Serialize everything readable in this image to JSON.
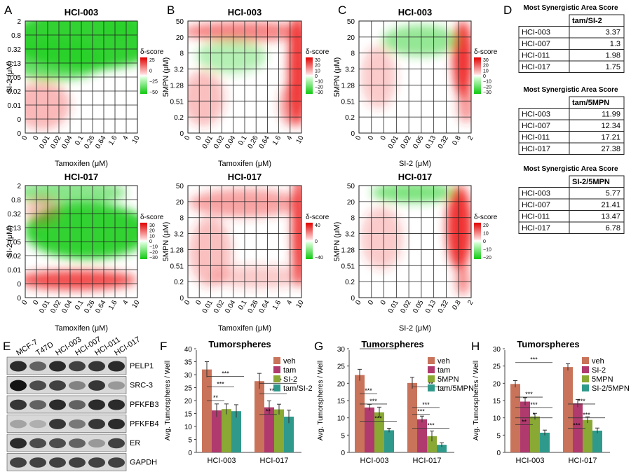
{
  "figure": {
    "panel_letters": [
      "A",
      "B",
      "C",
      "D",
      "E",
      "F",
      "G",
      "H"
    ],
    "delta_legend_title": "δ-score",
    "heatmap_axis": {
      "x_tam_label": "Tamoxifen (μM)",
      "x_si2_label": "SI-2 (μM)",
      "y_si2_label": "SI-2 (μM)",
      "y_5mpn_label": "5MPN (μM)",
      "tam_ticks": [
        "0",
        "0",
        "0.01",
        "0.02",
        "0.04",
        "0.1",
        "0.26",
        "0.64",
        "1.6",
        "4",
        "10"
      ],
      "si2_x_ticks": [
        "0",
        "0",
        "0",
        "0.01",
        "0.02",
        "0.05",
        "0.13",
        "0.32",
        "0.8",
        "2"
      ],
      "si2_y_ticks": [
        "0",
        "0",
        "0.01",
        "0.02",
        "0.05",
        "0.13",
        "0.32",
        "0.8",
        "2"
      ],
      "mpn_y_ticks": [
        "0",
        "0.2",
        "0.51",
        "1.28",
        "3.2",
        "8",
        "20",
        "50"
      ]
    },
    "heatmaps": [
      {
        "title": "HCI-003",
        "legend_ticks": [
          "25",
          "0",
          "−25",
          "−50"
        ]
      },
      {
        "title": "HCI-003",
        "legend_ticks": [
          "30",
          "20",
          "10",
          "0",
          "−10",
          "−20",
          "−30"
        ]
      },
      {
        "title": "HCI-003",
        "legend_ticks": [
          "30",
          "20",
          "10",
          "0",
          "−10",
          "−20",
          "−30"
        ]
      },
      {
        "title": "HCI-017",
        "legend_ticks": [
          "30",
          "20",
          "10",
          "0",
          "−10",
          "−20",
          "−30"
        ]
      },
      {
        "title": "HCI-017",
        "legend_ticks": [
          "40",
          "0",
          "−40"
        ]
      },
      {
        "title": "HCI-017",
        "legend_ticks": [
          "20",
          "10",
          "0",
          "−10",
          "−20"
        ]
      }
    ],
    "score_tables": [
      {
        "heading": "Most Synergistic Area Score",
        "col": "tam/SI-2",
        "rows": [
          [
            "HCI-003",
            "3.37"
          ],
          [
            "HCI-007",
            "1.3"
          ],
          [
            "HCI-011",
            "1.98"
          ],
          [
            "HCI-017",
            "1.75"
          ]
        ]
      },
      {
        "heading": "Most Synergistic Area Score",
        "col": "tam/5MPN",
        "rows": [
          [
            "HCI-003",
            "11.99"
          ],
          [
            "HCI-007",
            "12.34"
          ],
          [
            "HCI-011",
            "17.21"
          ],
          [
            "HCI-017",
            "27.38"
          ]
        ]
      },
      {
        "heading": "Most Synergistic Area Score",
        "col": "SI-2/5MPN",
        "rows": [
          [
            "HCI-003",
            "5.77"
          ],
          [
            "HCI-007",
            "21.41"
          ],
          [
            "HCI-011",
            "13.47"
          ],
          [
            "HCI-017",
            "6.78"
          ]
        ]
      }
    ],
    "blot": {
      "cell_lines": [
        "MCF-7",
        "T47D",
        "HCI-003",
        "HCI-007",
        "HCI-011",
        "HCI-017"
      ],
      "proteins": [
        "PELP1",
        "SRC-3",
        "PFKFB3",
        "PFKFB4",
        "ER",
        "GAPDH"
      ]
    },
    "chart_data": [
      {
        "type": "bar",
        "title": "Tumorspheres",
        "ylabel": "Avg. Tumorspheres / Well",
        "ylim": [
          0,
          40
        ],
        "yticks": [
          "0",
          "5",
          "10",
          "15",
          "20",
          "25",
          "30",
          "35",
          "40"
        ],
        "categories": [
          "HCI-003",
          "HCI-017"
        ],
        "series": [
          {
            "name": "veh",
            "color": "#c8735a",
            "values": [
              32,
              27.5
            ]
          },
          {
            "name": "tam",
            "color": "#b03a6e",
            "values": [
              16.2,
              17.4
            ]
          },
          {
            "name": "SI-2",
            "color": "#8aa834",
            "values": [
              16.7,
              16.6
            ]
          },
          {
            "name": "tam/SI-2",
            "color": "#2f9a8c",
            "values": [
              15.9,
              13.8
            ]
          }
        ],
        "annotations": [
          "***",
          "***",
          "**",
          "***",
          "**",
          "***"
        ]
      },
      {
        "type": "bar",
        "title": "Tumorspheres",
        "ylabel": "Avg. Tumorspheres / Well",
        "ylim": [
          0,
          30
        ],
        "yticks": [
          "0",
          "5",
          "10",
          "15",
          "20",
          "25",
          "30"
        ],
        "categories": [
          "HCI-003",
          "HCI-017"
        ],
        "series": [
          {
            "name": "veh",
            "color": "#c8735a",
            "values": [
              22.4,
              20.1
            ]
          },
          {
            "name": "tam",
            "color": "#b03a6e",
            "values": [
              13,
              9.6
            ]
          },
          {
            "name": "5MPN",
            "color": "#8aa834",
            "values": [
              11.6,
              4.7
            ]
          },
          {
            "name": "tam/5MPN",
            "color": "#2f9a8c",
            "values": [
              6.4,
              2.2
            ]
          }
        ],
        "annotations": [
          "***",
          "***",
          "***",
          "***",
          "**",
          "***",
          "***",
          "***",
          "***"
        ]
      },
      {
        "type": "bar",
        "title": "Tumorspheres",
        "ylabel": "Avg. Tumorspheres / Well",
        "ylim": [
          0,
          30
        ],
        "yticks": [
          "0",
          "5",
          "10",
          "15",
          "20",
          "25",
          "30"
        ],
        "categories": [
          "HCI-003",
          "HCI-017"
        ],
        "series": [
          {
            "name": "veh",
            "color": "#c8735a",
            "values": [
              19.8,
              24.7
            ]
          },
          {
            "name": "SI-2",
            "color": "#b03a6e",
            "values": [
              14.7,
              14.2
            ]
          },
          {
            "name": "5MPN",
            "color": "#8aa834",
            "values": [
              10.4,
              9.4
            ]
          },
          {
            "name": "SI-2/5MPN",
            "color": "#2f9a8c",
            "values": [
              5.7,
              6.3
            ]
          }
        ],
        "annotations": [
          "***",
          "***",
          "***",
          "*",
          "**",
          "***",
          "***",
          "***"
        ]
      }
    ]
  }
}
